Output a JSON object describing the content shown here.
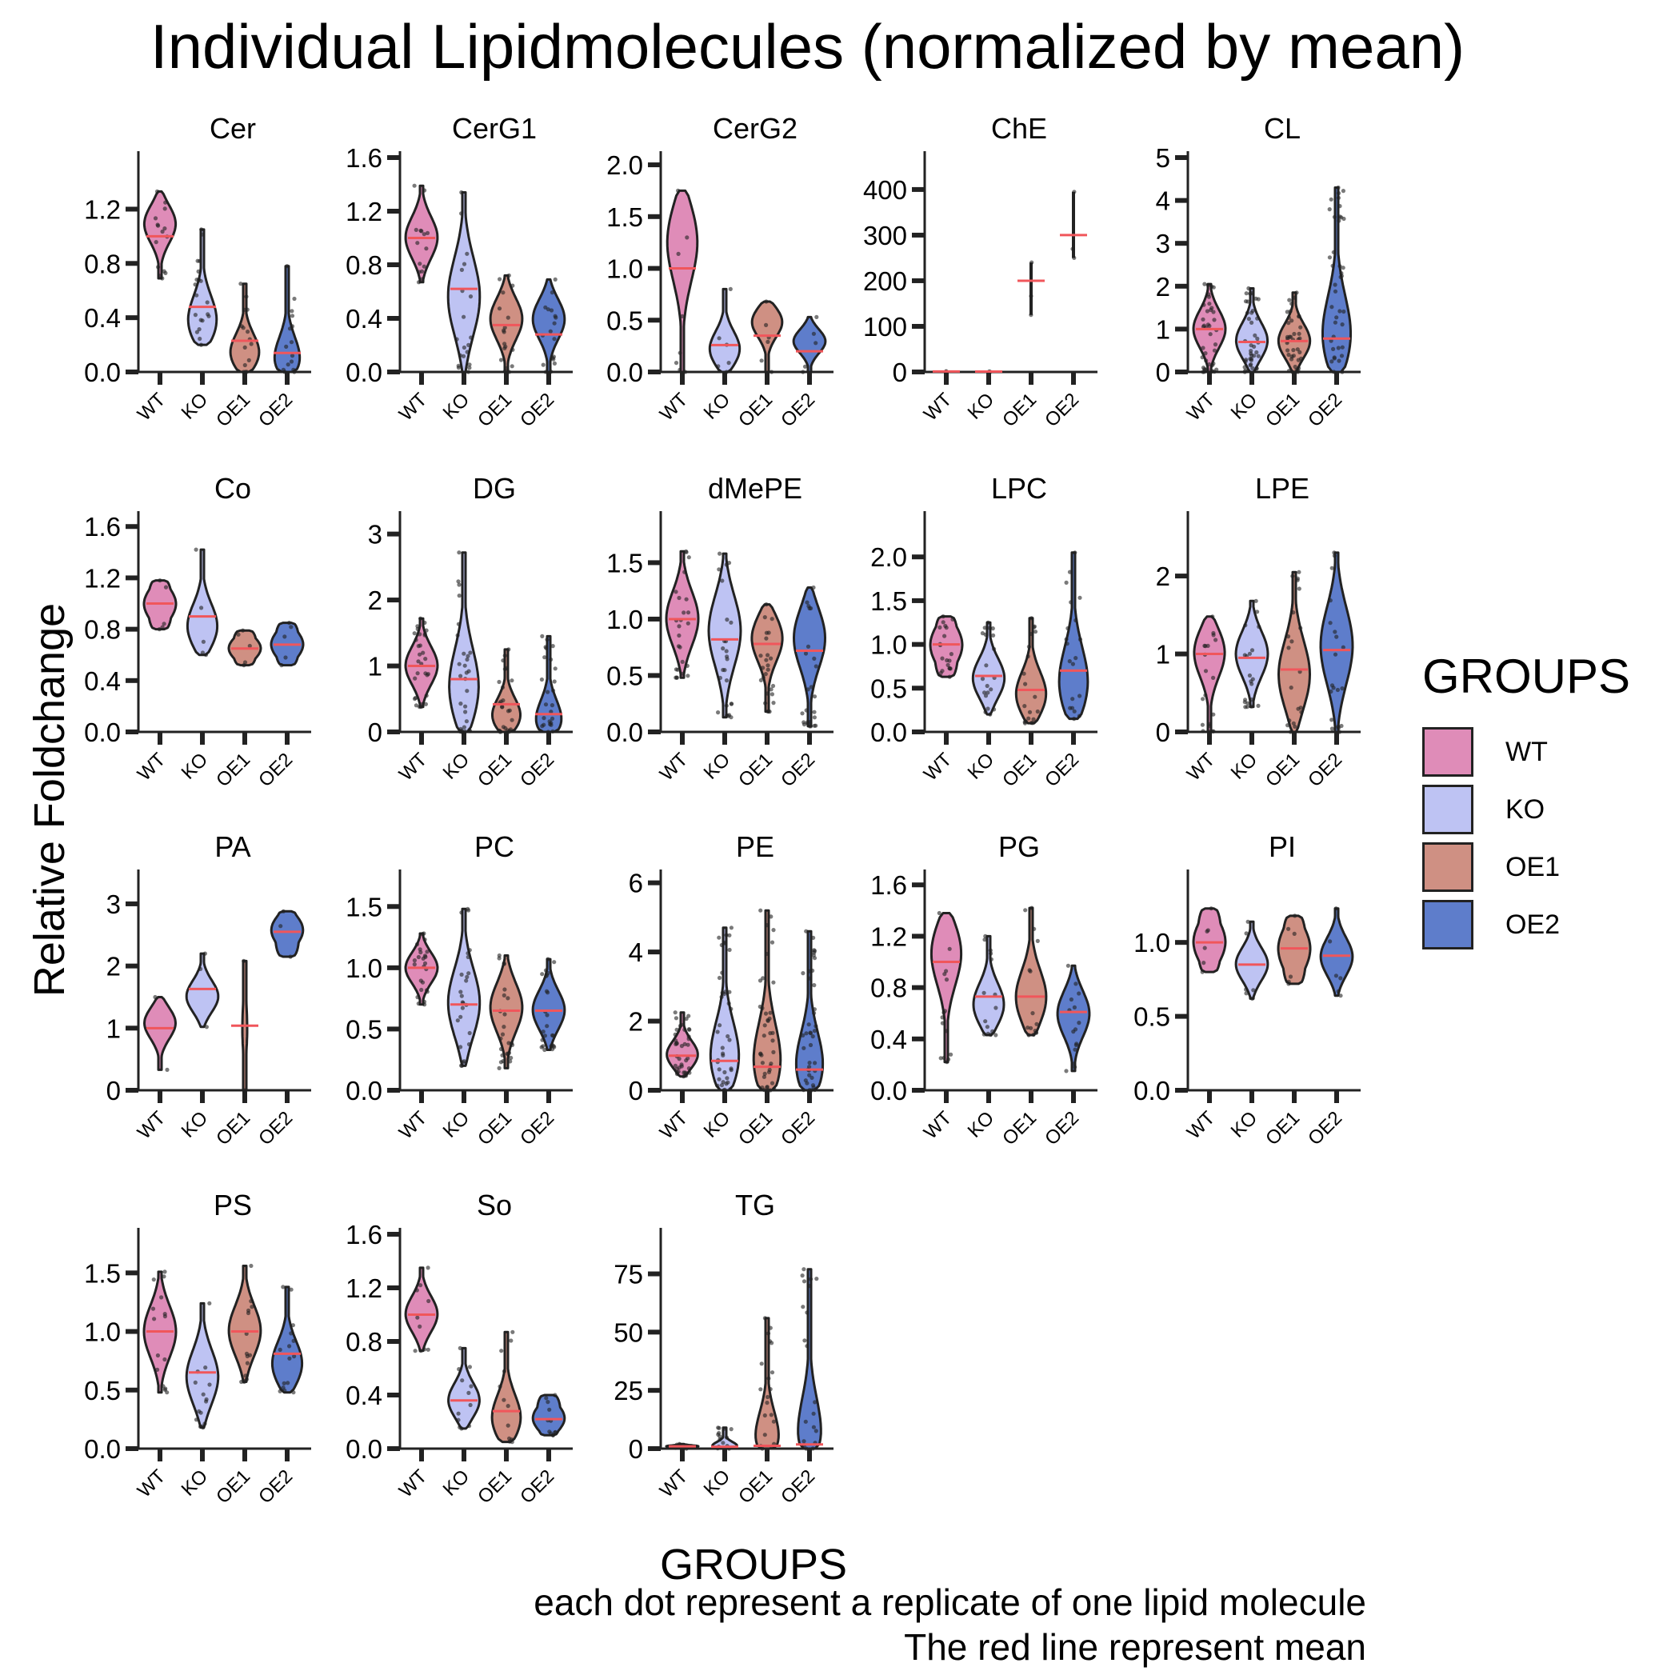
{
  "title": "Individual Lipidmolecules (normalized by mean)",
  "ylabel": "Relative Foldchange",
  "xlabel": "GROUPS",
  "caption": [
    "each dot represent a replicate of one lipid molecule",
    "The red line represent mean"
  ],
  "legend": {
    "title": "GROUPS",
    "items": [
      {
        "label": "WT",
        "color": "#DF8CB8"
      },
      {
        "label": "KO",
        "color": "#BEC3F3"
      },
      {
        "label": "OE1",
        "color": "#CF9083"
      },
      {
        "label": "OE2",
        "color": "#5E7DCB"
      }
    ]
  },
  "colors": {
    "mean_line": "#F0565B",
    "dots": "#222222",
    "outline": "#222222"
  },
  "chart_data": {
    "type": "violin",
    "categories": [
      "WT",
      "KO",
      "OE1",
      "OE2"
    ],
    "ylabel": "Relative Foldchange",
    "xlabel": "GROUPS",
    "panels": [
      {
        "name": "Cer",
        "ylim": [
          0,
          1.58
        ],
        "yticks": [
          0.0,
          0.4,
          0.8,
          1.2
        ],
        "ytick_labels": [
          "0.0",
          "0.4",
          "0.8",
          "1.2"
        ],
        "groups": [
          {
            "min": 0.69,
            "max": 1.33,
            "mean": 1.0,
            "mode": 1.1,
            "n": 15
          },
          {
            "min": 0.2,
            "max": 1.05,
            "mean": 0.48,
            "mode": 0.35,
            "n": 20
          },
          {
            "min": 0.0,
            "max": 0.65,
            "mean": 0.23,
            "mode": 0.12,
            "n": 15
          },
          {
            "min": 0.0,
            "max": 0.78,
            "mean": 0.14,
            "mode": 0.05,
            "n": 15
          }
        ]
      },
      {
        "name": "CerG1",
        "ylim": [
          0,
          1.6
        ],
        "yticks": [
          0.0,
          0.4,
          0.8,
          1.2,
          1.6
        ],
        "ytick_labels": [
          "0.0",
          "0.4",
          "0.8",
          "1.2",
          "1.6"
        ],
        "groups": [
          {
            "min": 0.67,
            "max": 1.39,
            "mean": 1.0,
            "mode": 1.0,
            "n": 15
          },
          {
            "min": 0.0,
            "max": 1.34,
            "mean": 0.62,
            "mode": 0.55,
            "n": 20
          },
          {
            "min": 0.0,
            "max": 0.72,
            "mean": 0.35,
            "mode": 0.4,
            "n": 18
          },
          {
            "min": 0.0,
            "max": 0.69,
            "mean": 0.28,
            "mode": 0.4,
            "n": 18
          }
        ]
      },
      {
        "name": "CerG2",
        "ylim": [
          0,
          2.07
        ],
        "yticks": [
          0.0,
          0.5,
          1.0,
          1.5,
          2.0
        ],
        "ytick_labels": [
          "0.0",
          "0.5",
          "1.0",
          "1.5",
          "2.0"
        ],
        "groups": [
          {
            "min": 0.0,
            "max": 1.75,
            "mean": 1.0,
            "mode": 1.3,
            "n": 8
          },
          {
            "min": 0.0,
            "max": 0.8,
            "mean": 0.26,
            "mode": 0.2,
            "n": 6
          },
          {
            "min": 0.0,
            "max": 0.68,
            "mean": 0.35,
            "mode": 0.5,
            "n": 6
          },
          {
            "min": 0.0,
            "max": 0.53,
            "mean": 0.2,
            "mode": 0.3,
            "n": 5
          }
        ]
      },
      {
        "name": "ChE",
        "ylim": [
          0,
          470
        ],
        "yticks": [
          0,
          100,
          200,
          300,
          400
        ],
        "ytick_labels": [
          "0",
          "100",
          "200",
          "300",
          "400"
        ],
        "groups": [
          {
            "min": 0.5,
            "max": 1.5,
            "mean": 1.0,
            "mode": 1.0,
            "n": 2,
            "line": true
          },
          {
            "min": 0.4,
            "max": 1.2,
            "mean": 0.8,
            "mode": 0.8,
            "n": 2,
            "line": true
          },
          {
            "min": 125,
            "max": 240,
            "mean": 200,
            "mode": 200,
            "n": 3,
            "line": true
          },
          {
            "min": 250,
            "max": 395,
            "mean": 300,
            "mode": 300,
            "n": 3,
            "line": true
          }
        ]
      },
      {
        "name": "CL",
        "ylim": [
          0,
          5.0
        ],
        "yticks": [
          0,
          1,
          2,
          3,
          4,
          5
        ],
        "ytick_labels": [
          "0",
          "1",
          "2",
          "3",
          "4",
          "5"
        ],
        "groups": [
          {
            "min": 0.0,
            "max": 2.05,
            "mean": 1.0,
            "mode": 1.0,
            "n": 40
          },
          {
            "min": 0.0,
            "max": 1.95,
            "mean": 0.7,
            "mode": 0.7,
            "n": 40
          },
          {
            "min": 0.0,
            "max": 1.85,
            "mean": 0.72,
            "mode": 0.7,
            "n": 40
          },
          {
            "min": 0.0,
            "max": 4.3,
            "mean": 0.78,
            "mode": 0.7,
            "n": 40
          }
        ]
      },
      {
        "name": "Co",
        "ylim": [
          0,
          1.67
        ],
        "yticks": [
          0.0,
          0.4,
          0.8,
          1.2,
          1.6
        ],
        "ytick_labels": [
          "0.0",
          "0.4",
          "0.8",
          "1.2",
          "1.6"
        ],
        "groups": [
          {
            "min": 0.8,
            "max": 1.18,
            "mean": 1.0,
            "mode": 1.0,
            "n": 5,
            "wide": true
          },
          {
            "min": 0.6,
            "max": 1.42,
            "mean": 0.9,
            "mode": 0.8,
            "n": 5
          },
          {
            "min": 0.52,
            "max": 0.79,
            "mean": 0.65,
            "mode": 0.65,
            "n": 5,
            "wide": true
          },
          {
            "min": 0.52,
            "max": 0.85,
            "mean": 0.68,
            "mode": 0.68,
            "n": 5,
            "wide": true
          }
        ]
      },
      {
        "name": "DG",
        "ylim": [
          0,
          3.25
        ],
        "yticks": [
          0,
          1,
          2,
          3
        ],
        "ytick_labels": [
          "0",
          "1",
          "2",
          "3"
        ],
        "groups": [
          {
            "min": 0.38,
            "max": 1.72,
            "mean": 1.0,
            "mode": 1.0,
            "n": 30
          },
          {
            "min": 0.0,
            "max": 2.72,
            "mean": 0.8,
            "mode": 0.6,
            "n": 30
          },
          {
            "min": 0.0,
            "max": 1.25,
            "mean": 0.42,
            "mode": 0.2,
            "n": 25
          },
          {
            "min": 0.0,
            "max": 1.45,
            "mean": 0.27,
            "mode": 0.1,
            "n": 25
          }
        ]
      },
      {
        "name": "dMePE",
        "ylim": [
          0,
          1.9
        ],
        "yticks": [
          0.0,
          0.5,
          1.0,
          1.5
        ],
        "ytick_labels": [
          "0.0",
          "0.5",
          "1.0",
          "1.5"
        ],
        "groups": [
          {
            "min": 0.48,
            "max": 1.6,
            "mean": 1.0,
            "mode": 1.0,
            "n": 25
          },
          {
            "min": 0.13,
            "max": 1.58,
            "mean": 0.82,
            "mode": 0.9,
            "n": 25
          },
          {
            "min": 0.18,
            "max": 1.13,
            "mean": 0.78,
            "mode": 0.85,
            "n": 25
          },
          {
            "min": 0.05,
            "max": 1.28,
            "mean": 0.72,
            "mode": 0.85,
            "n": 25
          }
        ]
      },
      {
        "name": "LPC",
        "ylim": [
          0,
          2.45
        ],
        "yticks": [
          0.0,
          0.5,
          1.0,
          1.5,
          2.0
        ],
        "ytick_labels": [
          "0.0",
          "0.5",
          "1.0",
          "1.5",
          "2.0"
        ],
        "groups": [
          {
            "min": 0.63,
            "max": 1.32,
            "mean": 1.0,
            "mode": 1.0,
            "n": 20,
            "wide": true
          },
          {
            "min": 0.2,
            "max": 1.25,
            "mean": 0.64,
            "mode": 0.6,
            "n": 20
          },
          {
            "min": 0.1,
            "max": 1.3,
            "mean": 0.48,
            "mode": 0.4,
            "n": 20
          },
          {
            "min": 0.15,
            "max": 2.05,
            "mean": 0.7,
            "mode": 0.5,
            "n": 20
          }
        ]
      },
      {
        "name": "LPE",
        "ylim": [
          0,
          2.75
        ],
        "yticks": [
          0,
          1,
          2
        ],
        "ytick_labels": [
          "0",
          "1",
          "2"
        ],
        "groups": [
          {
            "min": 0.0,
            "max": 1.48,
            "mean": 1.0,
            "mode": 1.05,
            "n": 20
          },
          {
            "min": 0.32,
            "max": 1.68,
            "mean": 0.95,
            "mode": 1.0,
            "n": 20
          },
          {
            "min": 0.0,
            "max": 2.05,
            "mean": 0.8,
            "mode": 0.7,
            "n": 20
          },
          {
            "min": 0.0,
            "max": 2.3,
            "mean": 1.05,
            "mode": 1.1,
            "n": 20
          }
        ]
      },
      {
        "name": "PA",
        "ylim": [
          0,
          3.45
        ],
        "yticks": [
          0,
          1,
          2,
          3
        ],
        "ytick_labels": [
          "0",
          "1",
          "2",
          "3"
        ],
        "groups": [
          {
            "min": 0.33,
            "max": 1.5,
            "mean": 1.0,
            "mode": 1.1,
            "n": 2
          },
          {
            "min": 1.02,
            "max": 2.2,
            "mean": 1.63,
            "mode": 1.5,
            "n": 3
          },
          {
            "min": 0.0,
            "max": 2.08,
            "mean": 1.04,
            "mode": 1.0,
            "n": 2,
            "thin": true
          },
          {
            "min": 2.15,
            "max": 2.88,
            "mean": 2.55,
            "mode": 2.6,
            "n": 3,
            "wide": true
          }
        ]
      },
      {
        "name": "PC",
        "ylim": [
          0,
          1.75
        ],
        "yticks": [
          0.0,
          0.5,
          1.0,
          1.5
        ],
        "ytick_labels": [
          "0.0",
          "0.5",
          "1.0",
          "1.5"
        ],
        "groups": [
          {
            "min": 0.7,
            "max": 1.28,
            "mean": 1.0,
            "mode": 1.0,
            "n": 25
          },
          {
            "min": 0.2,
            "max": 1.48,
            "mean": 0.7,
            "mode": 0.7,
            "n": 25
          },
          {
            "min": 0.18,
            "max": 1.1,
            "mean": 0.65,
            "mode": 0.68,
            "n": 25
          },
          {
            "min": 0.33,
            "max": 1.07,
            "mean": 0.65,
            "mode": 0.65,
            "n": 25
          }
        ]
      },
      {
        "name": "PE",
        "ylim": [
          0,
          6.2
        ],
        "yticks": [
          0,
          2,
          4,
          6
        ],
        "ytick_labels": [
          "0",
          "2",
          "4",
          "6"
        ],
        "groups": [
          {
            "min": 0.4,
            "max": 2.25,
            "mean": 1.0,
            "mode": 1.0,
            "n": 40
          },
          {
            "min": 0.0,
            "max": 4.7,
            "mean": 0.85,
            "mode": 0.8,
            "n": 40
          },
          {
            "min": 0.0,
            "max": 5.2,
            "mean": 0.68,
            "mode": 0.6,
            "n": 40
          },
          {
            "min": 0.0,
            "max": 4.6,
            "mean": 0.6,
            "mode": 0.5,
            "n": 40
          }
        ]
      },
      {
        "name": "PG",
        "ylim": [
          0,
          1.67
        ],
        "yticks": [
          0.0,
          0.4,
          0.8,
          1.2,
          1.6
        ],
        "ytick_labels": [
          "0.0",
          "0.4",
          "0.8",
          "1.2",
          "1.6"
        ],
        "groups": [
          {
            "min": 0.22,
            "max": 1.38,
            "mean": 1.0,
            "mode": 1.1,
            "n": 15
          },
          {
            "min": 0.43,
            "max": 1.2,
            "mean": 0.73,
            "mode": 0.65,
            "n": 15
          },
          {
            "min": 0.43,
            "max": 1.42,
            "mean": 0.73,
            "mode": 0.7,
            "n": 15
          },
          {
            "min": 0.15,
            "max": 0.97,
            "mean": 0.61,
            "mode": 0.6,
            "n": 15
          }
        ]
      },
      {
        "name": "PI",
        "ylim": [
          0,
          1.45
        ],
        "yticks": [
          0.0,
          0.5,
          1.0
        ],
        "ytick_labels": [
          "0.0",
          "0.5",
          "1.0"
        ],
        "groups": [
          {
            "min": 0.8,
            "max": 1.23,
            "mean": 1.0,
            "mode": 1.0,
            "n": 6,
            "wide": true
          },
          {
            "min": 0.62,
            "max": 1.14,
            "mean": 0.85,
            "mode": 0.85,
            "n": 6
          },
          {
            "min": 0.72,
            "max": 1.18,
            "mean": 0.96,
            "mode": 0.96,
            "n": 6,
            "wide": true
          },
          {
            "min": 0.64,
            "max": 1.23,
            "mean": 0.91,
            "mode": 0.9,
            "n": 6
          }
        ]
      },
      {
        "name": "PS",
        "ylim": [
          0,
          1.83
        ],
        "yticks": [
          0.0,
          0.5,
          1.0,
          1.5
        ],
        "ytick_labels": [
          "0.0",
          "0.5",
          "1.0",
          "1.5"
        ],
        "groups": [
          {
            "min": 0.48,
            "max": 1.51,
            "mean": 1.0,
            "mode": 1.0,
            "n": 15
          },
          {
            "min": 0.18,
            "max": 1.24,
            "mean": 0.65,
            "mode": 0.6,
            "n": 15
          },
          {
            "min": 0.57,
            "max": 1.56,
            "mean": 1.0,
            "mode": 1.0,
            "n": 15
          },
          {
            "min": 0.48,
            "max": 1.38,
            "mean": 0.81,
            "mode": 0.7,
            "n": 15
          }
        ]
      },
      {
        "name": "So",
        "ylim": [
          0,
          1.6
        ],
        "yticks": [
          0.0,
          0.4,
          0.8,
          1.2,
          1.6
        ],
        "ytick_labels": [
          "0.0",
          "0.4",
          "0.8",
          "1.2",
          "1.6"
        ],
        "groups": [
          {
            "min": 0.73,
            "max": 1.35,
            "mean": 1.0,
            "mode": 1.0,
            "n": 10
          },
          {
            "min": 0.15,
            "max": 0.75,
            "mean": 0.36,
            "mode": 0.35,
            "n": 12
          },
          {
            "min": 0.05,
            "max": 0.87,
            "mean": 0.28,
            "mode": 0.2,
            "n": 12
          },
          {
            "min": 0.1,
            "max": 0.4,
            "mean": 0.22,
            "mode": 0.22,
            "n": 12,
            "wide": true
          }
        ]
      },
      {
        "name": "TG",
        "ylim": [
          0,
          92
        ],
        "yticks": [
          0,
          25,
          50,
          75
        ],
        "ytick_labels": [
          "0",
          "25",
          "50",
          "75"
        ],
        "groups": [
          {
            "min": 0.0,
            "max": 2.0,
            "mean": 1.0,
            "mode": 1.0,
            "n": 15
          },
          {
            "min": 0.0,
            "max": 9.0,
            "mean": 0.8,
            "mode": 0.5,
            "n": 15
          },
          {
            "min": 0.0,
            "max": 56.0,
            "mean": 1.2,
            "mode": 0.5,
            "n": 20
          },
          {
            "min": 0.0,
            "max": 77.0,
            "mean": 1.8,
            "mode": 0.5,
            "n": 20
          }
        ]
      }
    ]
  }
}
